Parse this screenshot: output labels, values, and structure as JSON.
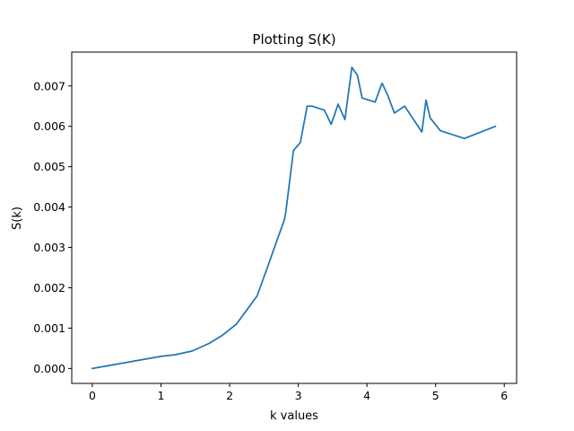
{
  "chart_data": {
    "type": "line",
    "title": "Plotting S(K)",
    "xlabel": "k values",
    "ylabel": "S(k)",
    "xlim": [
      -0.3,
      6.18
    ],
    "ylim": [
      -0.00037,
      0.00784
    ],
    "xticks": [
      0,
      1,
      2,
      3,
      4,
      5,
      6
    ],
    "xtick_labels": [
      "0",
      "1",
      "2",
      "3",
      "4",
      "5",
      "6"
    ],
    "yticks": [
      0.0,
      0.001,
      0.002,
      0.003,
      0.004,
      0.005,
      0.006,
      0.007
    ],
    "ytick_labels": [
      "0.000",
      "0.001",
      "0.002",
      "0.003",
      "0.004",
      "0.005",
      "0.006",
      "0.007"
    ],
    "grid": false,
    "line_color": "#1f77b4",
    "series": [
      {
        "x": [
          0.0,
          0.5,
          1.0,
          1.2,
          1.45,
          1.7,
          1.9,
          2.1,
          2.25,
          2.4,
          2.55,
          2.7,
          2.8,
          2.82,
          2.93,
          3.03,
          3.13,
          3.2,
          3.38,
          3.48,
          3.58,
          3.68,
          3.78,
          3.86,
          3.93,
          4.12,
          4.22,
          4.3,
          4.4,
          4.55,
          4.8,
          4.86,
          4.92,
          5.07,
          5.42,
          5.87
        ],
        "y": [
          0.0,
          0.00015,
          0.0003,
          0.00034,
          0.00043,
          0.00062,
          0.00083,
          0.0011,
          0.00145,
          0.0018,
          0.0025,
          0.00322,
          0.0037,
          0.0039,
          0.0054,
          0.0056,
          0.0065,
          0.0065,
          0.0064,
          0.00605,
          0.00655,
          0.00617,
          0.00746,
          0.00727,
          0.0067,
          0.0066,
          0.00707,
          0.00678,
          0.00633,
          0.0065,
          0.00586,
          0.00665,
          0.00621,
          0.00589,
          0.0057,
          0.006
        ]
      }
    ]
  }
}
